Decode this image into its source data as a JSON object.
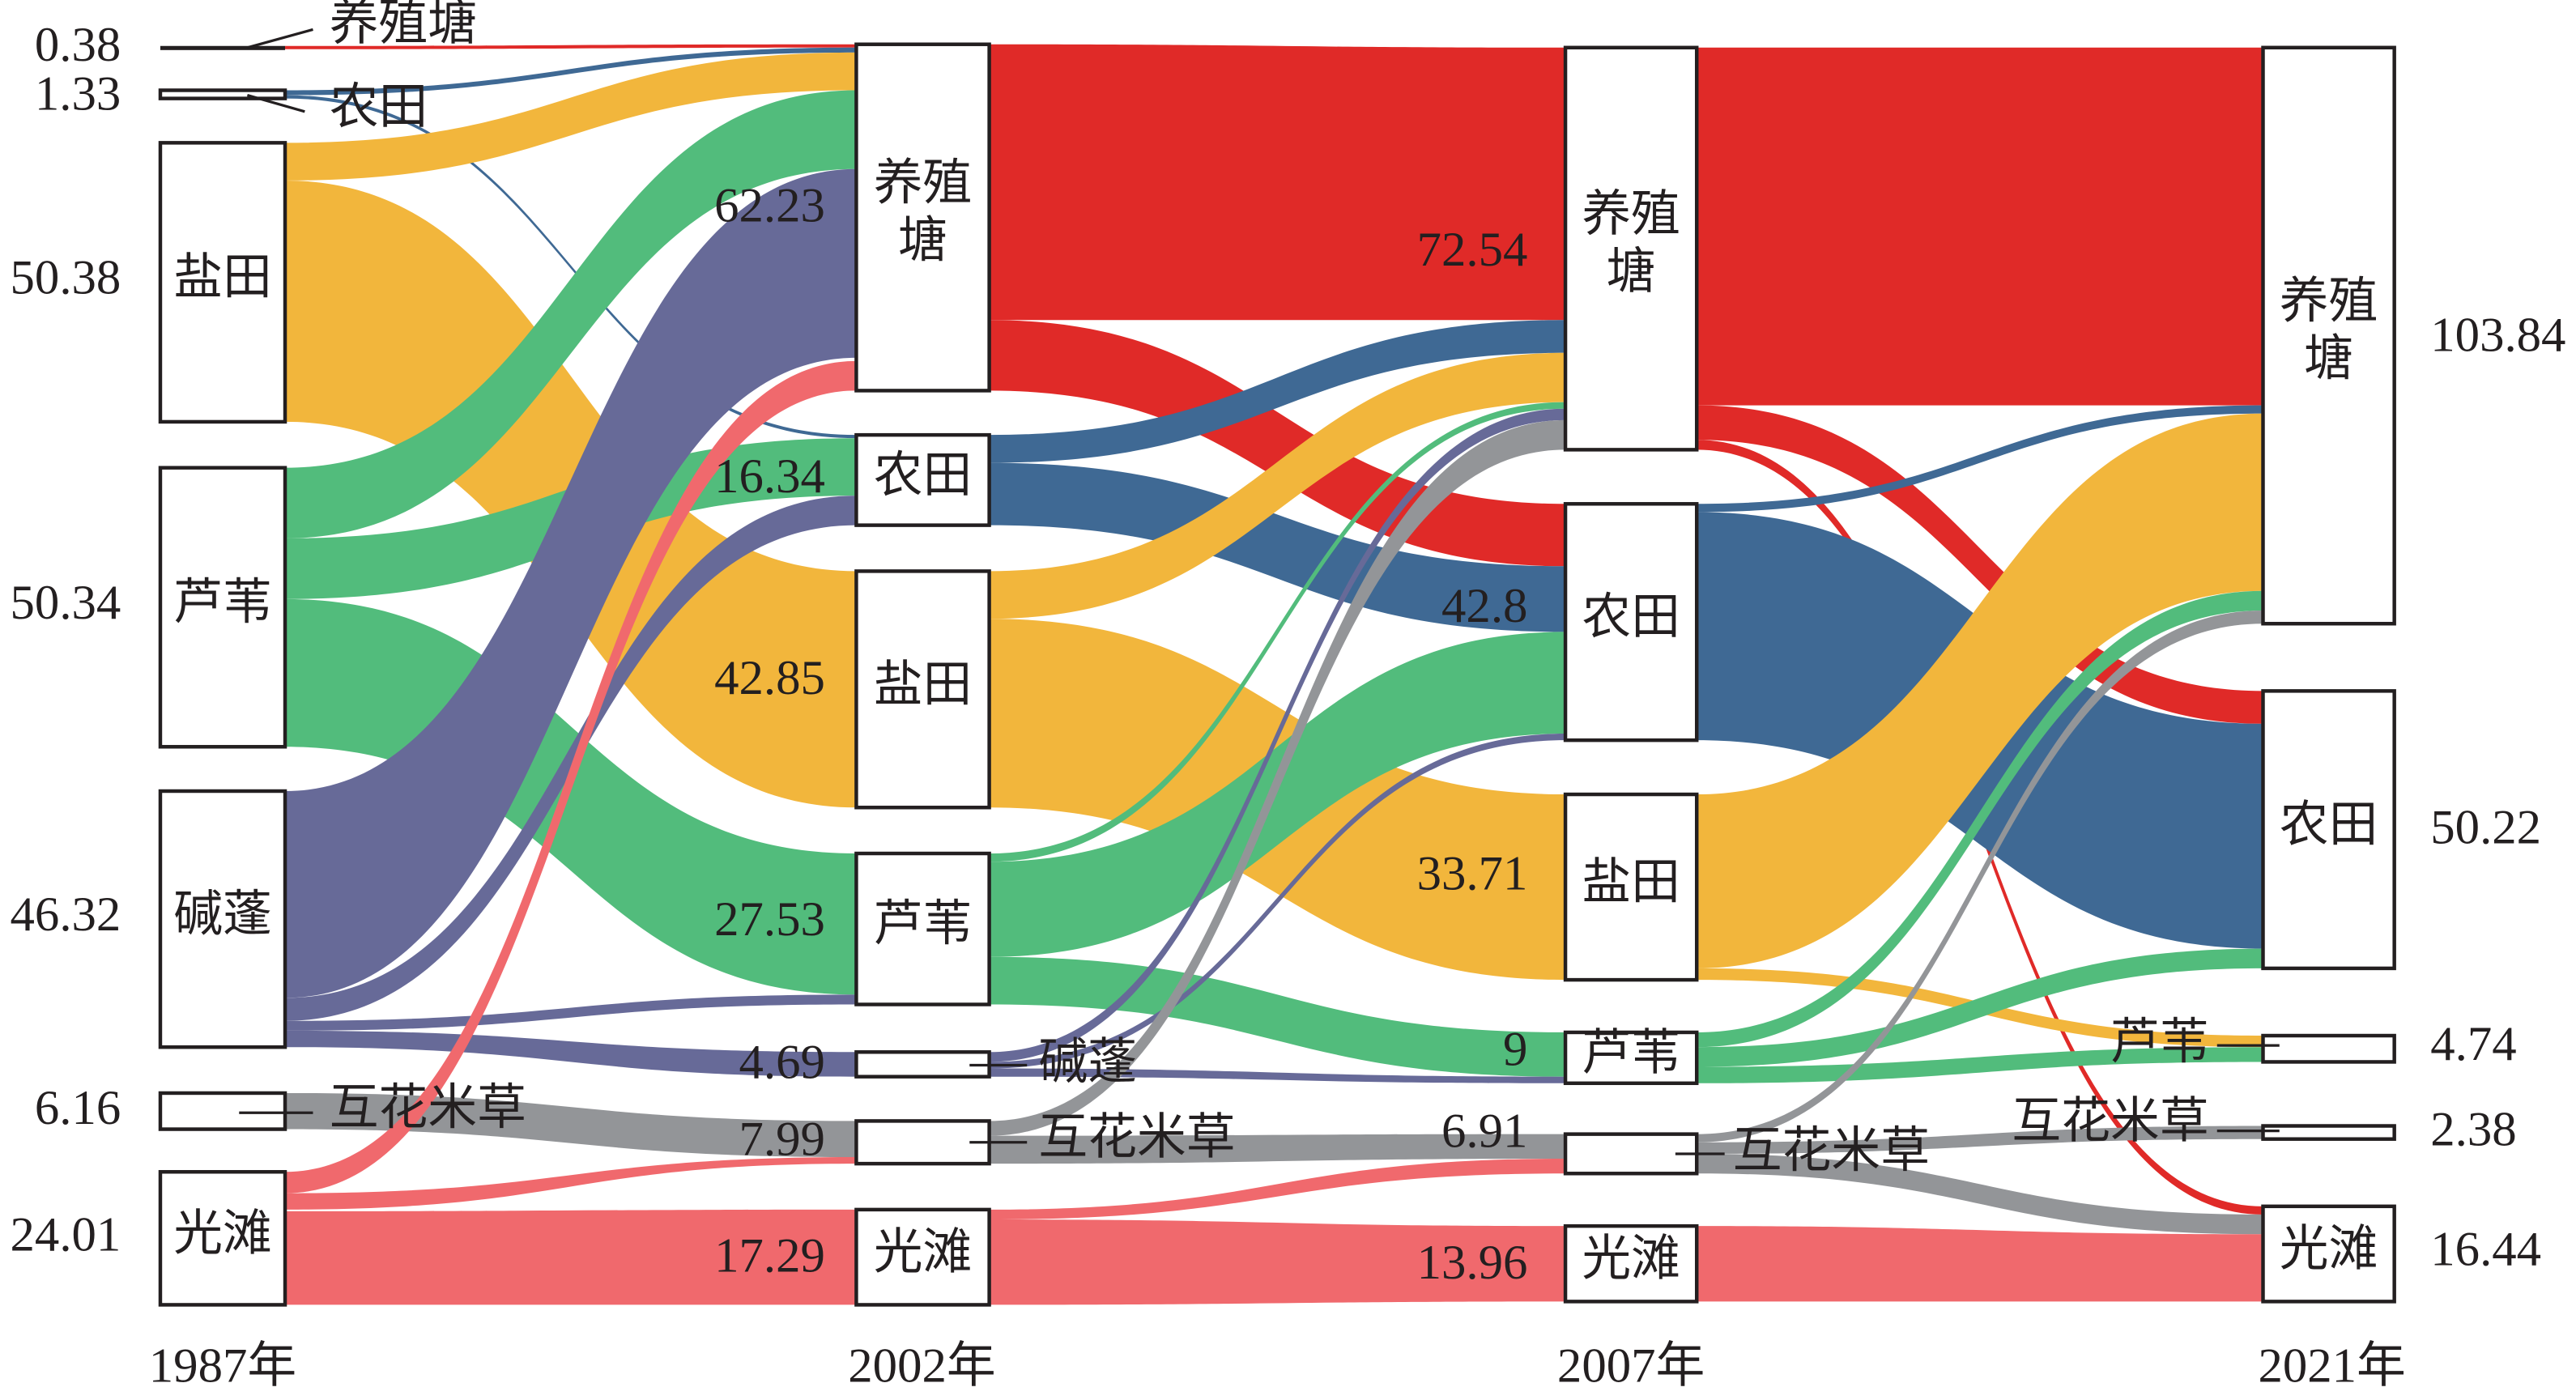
{
  "chart_data": {
    "type": "sankey",
    "title": "",
    "units_note": "",
    "colors": {
      "养殖塘": "#e02a28",
      "农田": "#3f6994",
      "盐田": "#f2b63c",
      "芦苇": "#52bc7c",
      "碱蓬": "#676a98",
      "互花米草": "#939598",
      "光滩": "#f0696d"
    },
    "columns": [
      {
        "year": "1987年",
        "nodes": [
          {
            "name": "养殖塘",
            "value": "0.38"
          },
          {
            "name": "农田",
            "value": "1.33"
          },
          {
            "name": "盐田",
            "value": "50.38"
          },
          {
            "name": "芦苇",
            "value": "50.34"
          },
          {
            "name": "碱蓬",
            "value": "46.32"
          },
          {
            "name": "互花米草",
            "value": "6.16"
          },
          {
            "name": "光滩",
            "value": "24.01"
          }
        ]
      },
      {
        "year": "2002年",
        "nodes": [
          {
            "name": "养殖塘",
            "value": "62.23"
          },
          {
            "name": "农田",
            "value": "16.34"
          },
          {
            "name": "盐田",
            "value": "42.85"
          },
          {
            "name": "芦苇",
            "value": "27.53"
          },
          {
            "name": "碱蓬",
            "value": "4.69"
          },
          {
            "name": "互花米草",
            "value": "7.99"
          },
          {
            "name": "光滩",
            "value": "17.29"
          }
        ]
      },
      {
        "year": "2007年",
        "nodes": [
          {
            "name": "养殖塘",
            "value": "72.54"
          },
          {
            "name": "农田",
            "value": "42.8"
          },
          {
            "name": "盐田",
            "value": "33.71"
          },
          {
            "name": "芦苇",
            "value": "9"
          },
          {
            "name": "互花米草",
            "value": "6.91"
          },
          {
            "name": "光滩",
            "value": "13.96"
          }
        ]
      },
      {
        "year": "2021年",
        "nodes": [
          {
            "name": "养殖塘",
            "value": "103.84"
          },
          {
            "name": "农田",
            "value": "50.22"
          },
          {
            "name": "芦苇",
            "value": "4.74"
          },
          {
            "name": "互花米草",
            "value": "2.38"
          },
          {
            "name": "光滩",
            "value": "16.44"
          }
        ]
      }
    ],
    "links": [
      {
        "from_year": "1987年",
        "source": "养殖塘",
        "to_year": "2002年",
        "target": "养殖塘",
        "value": 0.38
      },
      {
        "from_year": "1987年",
        "source": "农田",
        "to_year": "2002年",
        "target": "养殖塘",
        "value": 0.9
      },
      {
        "from_year": "1987年",
        "source": "农田",
        "to_year": "2002年",
        "target": "农田",
        "value": 0.4
      },
      {
        "from_year": "1987年",
        "source": "盐田",
        "to_year": "2002年",
        "target": "养殖塘",
        "value": 6.8
      },
      {
        "from_year": "1987年",
        "source": "盐田",
        "to_year": "2002年",
        "target": "盐田",
        "value": 42.85
      },
      {
        "from_year": "1987年",
        "source": "芦苇",
        "to_year": "2002年",
        "target": "养殖塘",
        "value": 13.5
      },
      {
        "from_year": "1987年",
        "source": "芦苇",
        "to_year": "2002年",
        "target": "农田",
        "value": 10.5
      },
      {
        "from_year": "1987年",
        "source": "芦苇",
        "to_year": "2002年",
        "target": "芦苇",
        "value": 25.5
      },
      {
        "from_year": "1987年",
        "source": "碱蓬",
        "to_year": "2002年",
        "target": "养殖塘",
        "value": 35.5
      },
      {
        "from_year": "1987年",
        "source": "碱蓬",
        "to_year": "2002年",
        "target": "农田",
        "value": 4.7
      },
      {
        "from_year": "1987年",
        "source": "碱蓬",
        "to_year": "2002年",
        "target": "芦苇",
        "value": 1.8
      },
      {
        "from_year": "1987年",
        "source": "碱蓬",
        "to_year": "2002年",
        "target": "碱蓬",
        "value": 3.0
      },
      {
        "from_year": "1987年",
        "source": "互花米草",
        "to_year": "2002年",
        "target": "互花米草",
        "value": 6.2
      },
      {
        "from_year": "1987年",
        "source": "光滩",
        "to_year": "2002年",
        "target": "养殖塘",
        "value": 4.0
      },
      {
        "from_year": "1987年",
        "source": "光滩",
        "to_year": "2002年",
        "target": "互花米草",
        "value": 1.5
      },
      {
        "from_year": "1987年",
        "source": "光滩",
        "to_year": "2002年",
        "target": "光滩",
        "value": 17.0
      },
      {
        "from_year": "2002年",
        "source": "养殖塘",
        "to_year": "2007年",
        "target": "养殖塘",
        "value": 49.5
      },
      {
        "from_year": "2002年",
        "source": "养殖塘",
        "to_year": "2007年",
        "target": "农田",
        "value": 12.0
      },
      {
        "from_year": "2002年",
        "source": "农田",
        "to_year": "2007年",
        "target": "养殖塘",
        "value": 5.5
      },
      {
        "from_year": "2002年",
        "source": "农田",
        "to_year": "2007年",
        "target": "农田",
        "value": 11.5
      },
      {
        "from_year": "2002年",
        "source": "盐田",
        "to_year": "2007年",
        "target": "养殖塘",
        "value": 8.7
      },
      {
        "from_year": "2002年",
        "source": "盐田",
        "to_year": "2007年",
        "target": "盐田",
        "value": 33.7
      },
      {
        "from_year": "2002年",
        "source": "芦苇",
        "to_year": "2007年",
        "target": "养殖塘",
        "value": 1.3
      },
      {
        "from_year": "2002年",
        "source": "芦苇",
        "to_year": "2007年",
        "target": "农田",
        "value": 17.8
      },
      {
        "from_year": "2002年",
        "source": "芦苇",
        "to_year": "2007年",
        "target": "芦苇",
        "value": 8.3
      },
      {
        "from_year": "2002年",
        "source": "碱蓬",
        "to_year": "2007年",
        "target": "养殖塘",
        "value": 1.9
      },
      {
        "from_year": "2002年",
        "source": "碱蓬",
        "to_year": "2007年",
        "target": "农田",
        "value": 1.2
      },
      {
        "from_year": "2002年",
        "source": "碱蓬",
        "to_year": "2007年",
        "target": "芦苇",
        "value": 1.3
      },
      {
        "from_year": "2002年",
        "source": "互花米草",
        "to_year": "2007年",
        "target": "养殖塘",
        "value": 4.0
      },
      {
        "from_year": "2002年",
        "source": "互花米草",
        "to_year": "2007年",
        "target": "互花米草",
        "value": 4.8
      },
      {
        "from_year": "2002年",
        "source": "光滩",
        "to_year": "2007年",
        "target": "互花米草",
        "value": 2.2
      },
      {
        "from_year": "2002年",
        "source": "光滩",
        "to_year": "2007年",
        "target": "光滩",
        "value": 14.5
      },
      {
        "from_year": "2007年",
        "source": "养殖塘",
        "to_year": "2021年",
        "target": "养殖塘",
        "value": 64.5
      },
      {
        "from_year": "2007年",
        "source": "养殖塘",
        "to_year": "2021年",
        "target": "农田",
        "value": 6.1
      },
      {
        "from_year": "2007年",
        "source": "养殖塘",
        "to_year": "2021年",
        "target": "光滩",
        "value": 1.6
      },
      {
        "from_year": "2007年",
        "source": "农田",
        "to_year": "2021年",
        "target": "养殖塘",
        "value": 1.5
      },
      {
        "from_year": "2007年",
        "source": "农田",
        "to_year": "2021年",
        "target": "农田",
        "value": 39.5
      },
      {
        "from_year": "2007年",
        "source": "盐田",
        "to_year": "2021年",
        "target": "养殖塘",
        "value": 31.7
      },
      {
        "from_year": "2007年",
        "source": "盐田",
        "to_year": "2021年",
        "target": "芦苇",
        "value": 2.1
      },
      {
        "from_year": "2007年",
        "source": "芦苇",
        "to_year": "2021年",
        "target": "养殖塘",
        "value": 3.1
      },
      {
        "from_year": "2007年",
        "source": "芦苇",
        "to_year": "2021年",
        "target": "农田",
        "value": 3.5
      },
      {
        "from_year": "2007年",
        "source": "芦苇",
        "to_year": "2021年",
        "target": "芦苇",
        "value": 2.8
      },
      {
        "from_year": "2007年",
        "source": "互花米草",
        "to_year": "2021年",
        "target": "养殖塘",
        "value": 1.9
      },
      {
        "from_year": "2007年",
        "source": "互花米草",
        "to_year": "2021年",
        "target": "互花米草",
        "value": 2.2
      },
      {
        "from_year": "2007年",
        "source": "互花米草",
        "to_year": "2021年",
        "target": "光滩",
        "value": 3.6
      },
      {
        "from_year": "2007年",
        "source": "光滩",
        "to_year": "2021年",
        "target": "光滩",
        "value": 12.8
      }
    ]
  }
}
